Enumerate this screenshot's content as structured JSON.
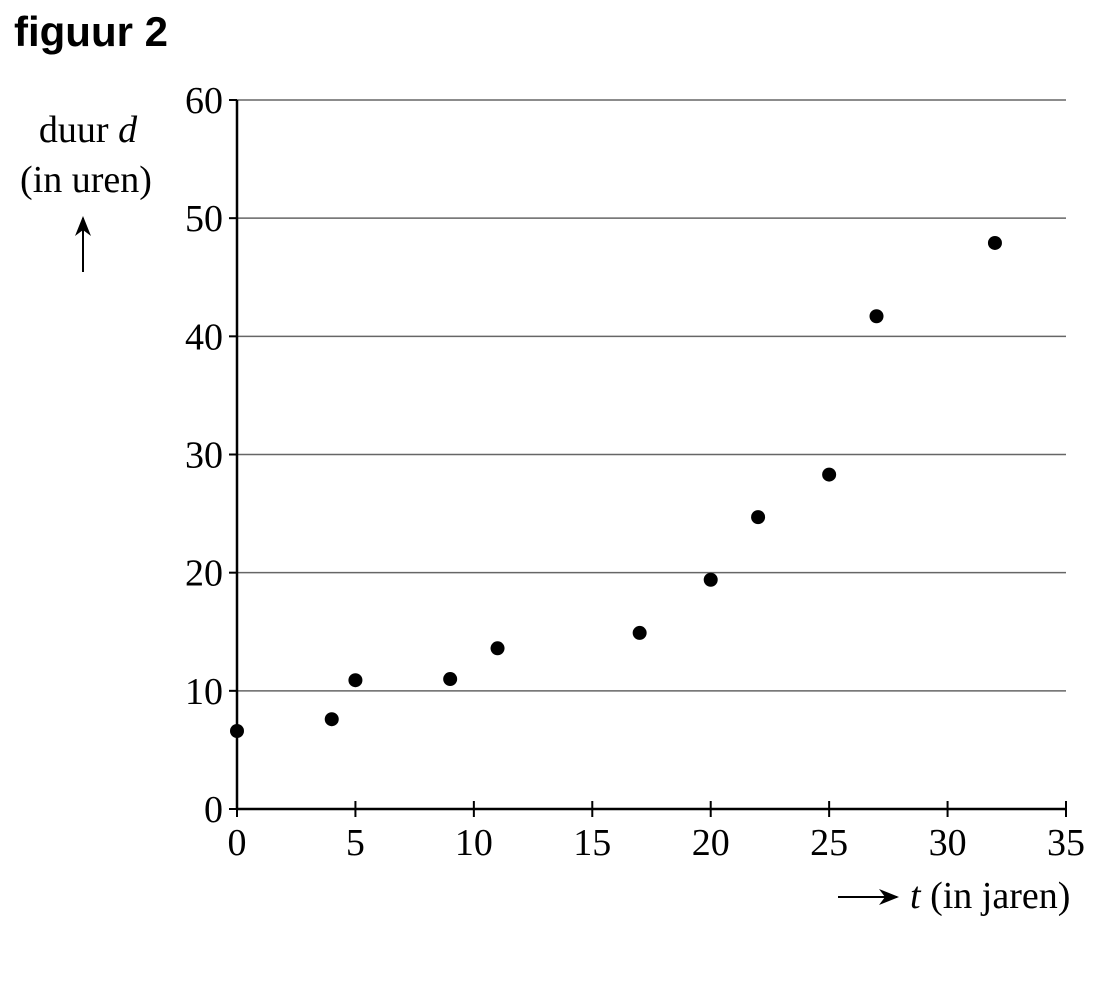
{
  "chart_data": {
    "type": "scatter",
    "title": "figuur 2",
    "ylabel": {
      "text": "duur",
      "variable": "d",
      "unit": "(in uren)"
    },
    "xlabel": {
      "variable": "t",
      "unit": "(in jaren)"
    },
    "x": [
      0,
      4,
      5,
      9,
      11,
      17,
      20,
      22,
      25,
      27,
      32
    ],
    "values": [
      6.6,
      7.6,
      10.9,
      11.0,
      13.6,
      14.9,
      19.4,
      24.7,
      28.3,
      41.7,
      47.9
    ],
    "color": "#000000",
    "xlim": [
      0,
      35
    ],
    "xticks": [
      0,
      5,
      10,
      15,
      20,
      25,
      30,
      35
    ],
    "ylim": [
      0,
      60
    ],
    "yticks": [
      0,
      10,
      20,
      30,
      40,
      50,
      60
    ],
    "grid": true
  }
}
